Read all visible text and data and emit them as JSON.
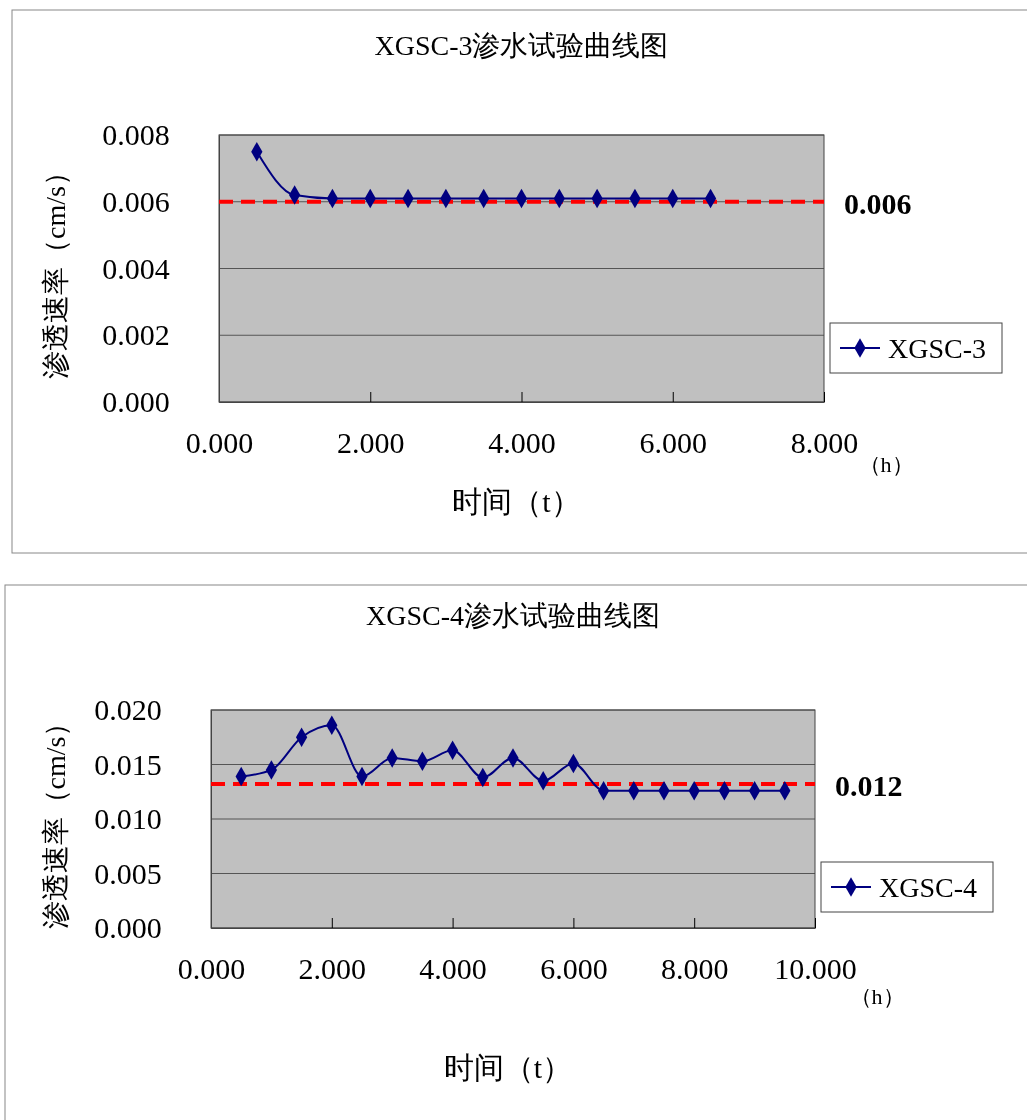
{
  "chart_data": [
    {
      "type": "line",
      "title": "XGSC-3渗水试验曲线图",
      "xlabel": "时间（t）",
      "ylabel": "渗透速率（cm/s）",
      "annotations": [
        "（h）"
      ],
      "x": [
        0.5,
        1,
        1.5,
        2,
        2.5,
        3,
        3.5,
        4,
        4.5,
        5,
        5.5,
        6,
        6.5
      ],
      "series": [
        {
          "name": "XGSC-3",
          "color": "#000080",
          "values": [
            0.0075,
            0.0062,
            0.0061,
            0.0061,
            0.0061,
            0.0061,
            0.0061,
            0.0061,
            0.0061,
            0.0061,
            0.0061,
            0.0061,
            0.0061
          ]
        }
      ],
      "xlim": [
        0,
        8
      ],
      "ylim": [
        0,
        0.008
      ],
      "xticks": [
        {
          "value": 0,
          "label": "0.000"
        },
        {
          "value": 2,
          "label": "2.000"
        },
        {
          "value": 4,
          "label": "4.000"
        },
        {
          "value": 6,
          "label": "6.000"
        },
        {
          "value": 8,
          "label": "8.000"
        }
      ],
      "yticks": [
        {
          "value": 0,
          "label": "0.000"
        },
        {
          "value": 0.002,
          "label": "0.002"
        },
        {
          "value": 0.004,
          "label": "0.004"
        },
        {
          "value": 0.006,
          "label": "0.006"
        },
        {
          "value": 0.008,
          "label": "0.008"
        }
      ],
      "grid": "y",
      "legend": "right",
      "marker": "diamond",
      "ref_lines": [
        {
          "axis": "y",
          "value": 0.006,
          "label": "0.006",
          "color": "#ff0000",
          "line_style": "dashed"
        }
      ]
    },
    {
      "type": "line",
      "title": "XGSC-4渗水试验曲线图",
      "xlabel": "时间（t）",
      "ylabel": "渗透速率（cm/s）",
      "annotations": [
        "（h）",
        {
          "text": "0.012",
          "x": 10,
          "y": 0.0132
        }
      ],
      "x": [
        0.5,
        1,
        1.5,
        2,
        2.5,
        3,
        3.5,
        4,
        4.5,
        5,
        5.5,
        6,
        6.5,
        7,
        7.5,
        8,
        8.5,
        9,
        9.5
      ],
      "series": [
        {
          "name": "XGSC-4",
          "color": "#000080",
          "values": [
            0.0139,
            0.0145,
            0.0175,
            0.0186,
            0.0139,
            0.0156,
            0.0153,
            0.0163,
            0.0138,
            0.0156,
            0.0135,
            0.0151,
            0.0126,
            0.0126,
            0.0126,
            0.0126,
            0.0126,
            0.0126,
            0.0126
          ]
        }
      ],
      "xlim": [
        0,
        10
      ],
      "ylim": [
        0,
        0.02
      ],
      "xticks": [
        {
          "value": 0,
          "label": "0.000"
        },
        {
          "value": 2,
          "label": "2.000"
        },
        {
          "value": 4,
          "label": "4.000"
        },
        {
          "value": 6,
          "label": "6.000"
        },
        {
          "value": 8,
          "label": "8.000"
        },
        {
          "value": 10,
          "label": "10.000"
        }
      ],
      "yticks": [
        {
          "value": 0,
          "label": "0.000"
        },
        {
          "value": 0.005,
          "label": "0.005"
        },
        {
          "value": 0.01,
          "label": "0.010"
        },
        {
          "value": 0.015,
          "label": "0.015"
        },
        {
          "value": 0.02,
          "label": "0.020"
        }
      ],
      "grid": "y",
      "legend": "right",
      "marker": "diamond",
      "ref_lines": [
        {
          "axis": "y",
          "value": 0.0132,
          "color": "#ff0000",
          "line_style": "dashed"
        }
      ]
    }
  ]
}
